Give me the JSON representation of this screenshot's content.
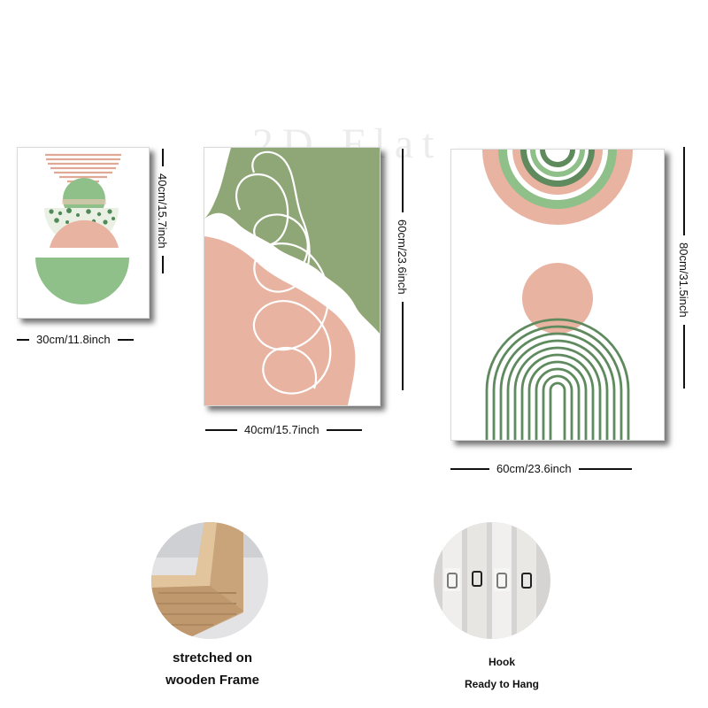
{
  "watermark": "2D Flat",
  "panels": {
    "small": {
      "width_label": "30cm/11.8inch",
      "height_label": "40cm/15.7inch"
    },
    "medium": {
      "width_label": "40cm/15.7inch",
      "height_label": "60cm/23.6inch"
    },
    "large": {
      "width_label": "60cm/23.6inch",
      "height_label": "80cm/31.5inch"
    }
  },
  "features": {
    "frame": {
      "caption_line1": "stretched on",
      "caption_line2": "wooden Frame"
    },
    "hook": {
      "caption_line1": "Hook",
      "caption_line2": "Ready to Hang"
    }
  },
  "colors": {
    "sage_green": "#8fc08a",
    "dark_green": "#5e8a5e",
    "blush_pink": "#e8b3a1",
    "muted_green": "#8fa777"
  }
}
